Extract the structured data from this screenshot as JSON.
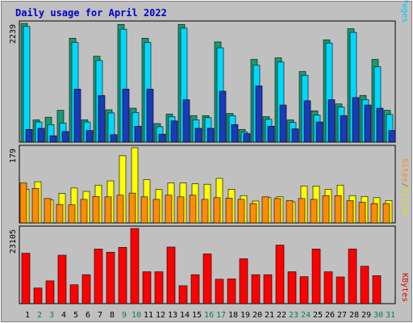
{
  "chart_data": {
    "type": "bar",
    "title": "Daily usage for April 2022",
    "categories": [
      "1",
      "2",
      "3",
      "4",
      "5",
      "6",
      "7",
      "8",
      "9",
      "10",
      "11",
      "12",
      "13",
      "14",
      "15",
      "16",
      "17",
      "18",
      "19",
      "20",
      "21",
      "22",
      "23",
      "24",
      "25",
      "26",
      "27",
      "28",
      "29",
      "30",
      "31"
    ],
    "weekend_days": [
      "2",
      "3",
      "9",
      "10",
      "16",
      "17",
      "23",
      "24",
      "30",
      "31"
    ],
    "panels": [
      {
        "id": "hits-files-pages",
        "ymax_label": "2239",
        "ylim": [
          0,
          2239
        ],
        "legend": [
          {
            "text": "Pages",
            "color": "#00c8f0"
          },
          {
            "text": "/",
            "color": "#003cb4"
          },
          {
            "text": "Files",
            "color": "#0000c8"
          },
          {
            "text": "/",
            "color": "#003cb4"
          },
          {
            "text": "Hits",
            "color": "#00805a"
          }
        ],
        "series": [
          {
            "name": "Hits",
            "color": "#1a9a72",
            "values": [
              2239,
              420,
              470,
              600,
              1960,
              420,
              1620,
              610,
              2220,
              640,
              1960,
              350,
              530,
              2220,
              500,
              500,
              1890,
              540,
              240,
              1560,
              480,
              1590,
              420,
              1330,
              590,
              1930,
              720,
              2139,
              880,
              1560,
              600
            ]
          },
          {
            "name": "Files",
            "color": "#00d8ff",
            "values": [
              2180,
              380,
              330,
              360,
              1880,
              380,
              1540,
              550,
              2130,
              560,
              1880,
              290,
              480,
              2150,
              420,
              460,
              1780,
              500,
              190,
              1450,
              430,
              1510,
              370,
              1260,
              510,
              1870,
              660,
              2070,
              800,
              1420,
              520
            ]
          },
          {
            "name": "Pages",
            "color": "#1a3ab8",
            "values": [
              240,
              260,
              120,
              200,
              1000,
              220,
              880,
              140,
              1000,
              300,
              1000,
              150,
              400,
              800,
              260,
              260,
              960,
              330,
              160,
              1060,
              300,
              700,
              250,
              780,
              380,
              800,
              500,
              840,
              700,
              640,
              220
            ]
          }
        ]
      },
      {
        "id": "visits-sites",
        "ymax_label": "179",
        "ylim": [
          0,
          179
        ],
        "legend": [
          {
            "text": "Sites",
            "color": "#ff8c00"
          },
          {
            "text": "/",
            "color": "#808000"
          },
          {
            "text": "Visits",
            "color": "#e0e000"
          }
        ],
        "series": [
          {
            "name": "Visits",
            "color": "#ffff00",
            "values": [
              80,
              98,
              55,
              70,
              83,
              75,
              90,
              100,
              160,
              179,
              103,
              80,
              95,
              95,
              93,
              92,
              106,
              80,
              65,
              52,
              60,
              62,
              50,
              88,
              88,
              80,
              90,
              65,
              63,
              60,
              53
            ]
          },
          {
            "name": "Sites",
            "color": "#ff8c00",
            "values": [
              95,
              82,
              58,
              44,
              43,
              56,
              63,
              62,
              66,
              71,
              62,
              56,
              66,
              62,
              66,
              56,
              60,
              59,
              56,
              46,
              62,
              58,
              53,
              58,
              56,
              65,
              65,
              53,
              49,
              46,
              46
            ]
          }
        ]
      },
      {
        "id": "kbytes",
        "ymax_label": "23105",
        "ylim": [
          0,
          23105
        ],
        "legend": [
          {
            "text": "KBytes",
            "color": "#e00000"
          }
        ],
        "series": [
          {
            "name": "KBytes",
            "color": "#ff0000",
            "values": [
              15500,
              4800,
              7000,
              14900,
              5800,
              8900,
              16800,
              15800,
              17300,
              23105,
              9800,
              9800,
              17400,
              5500,
              8900,
              15300,
              7500,
              7600,
              13800,
              8900,
              8900,
              18000,
              9800,
              8300,
              16800,
              9800,
              8200,
              16800,
              11500,
              8600,
              0
            ]
          }
        ]
      }
    ]
  }
}
